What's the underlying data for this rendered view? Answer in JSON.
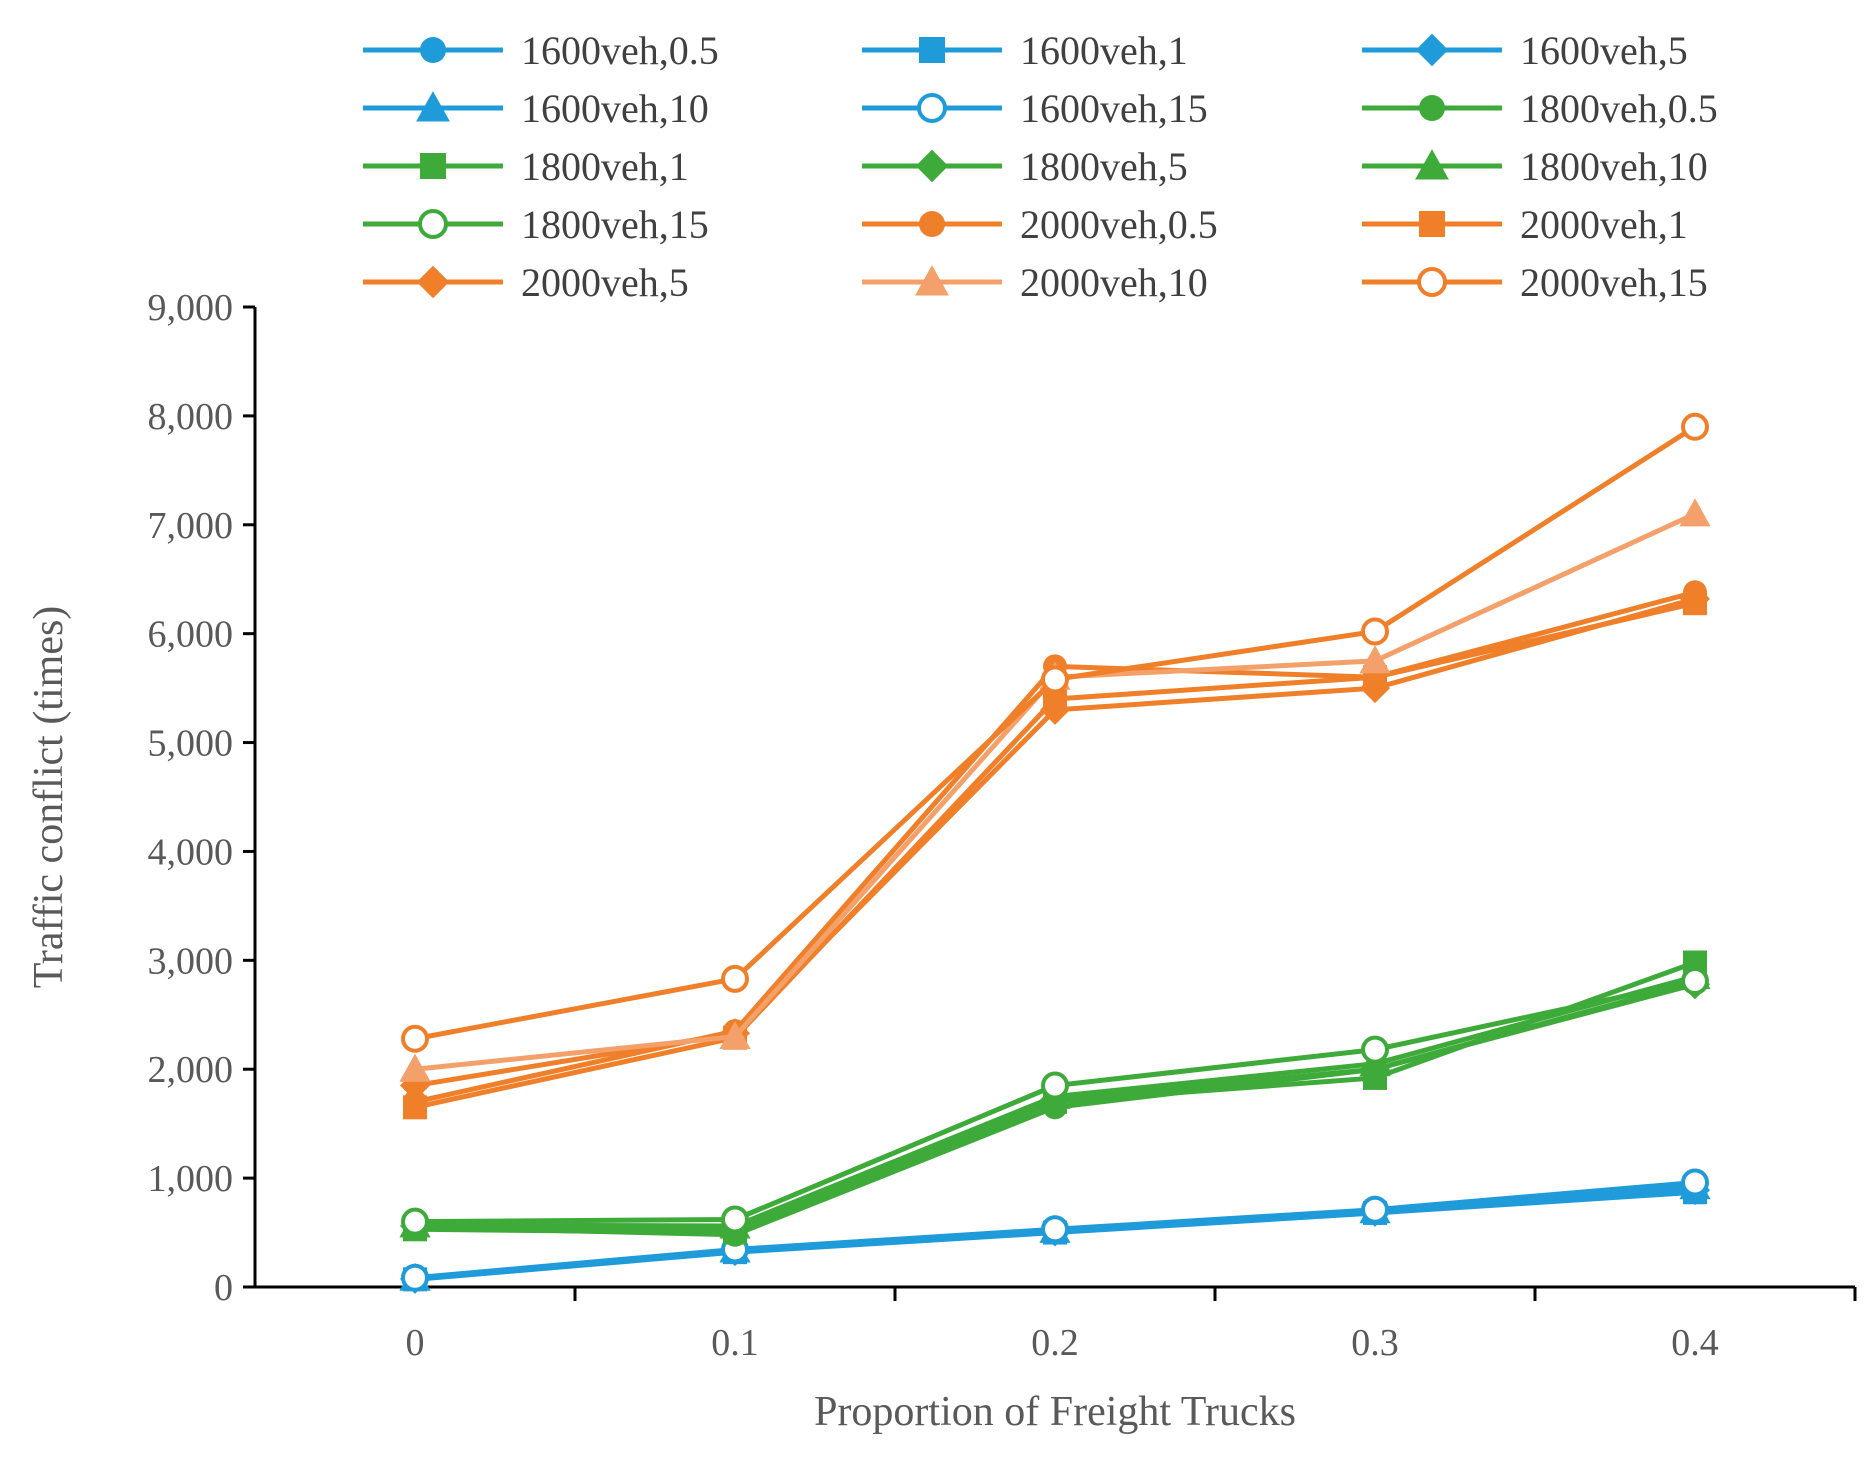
{
  "chart_data": {
    "type": "line",
    "title": "",
    "xlabel": "Proportion of Freight  Trucks",
    "ylabel": "Traffic conflict (times)",
    "x": [
      0,
      0.1,
      0.2,
      0.3,
      0.4
    ],
    "x_tick_labels": [
      "0",
      "0.1",
      "0.2",
      "0.3",
      "0.4"
    ],
    "xlim": [
      -0.05,
      0.45
    ],
    "ylim": [
      0,
      9000
    ],
    "y_ticks": [
      0,
      1000,
      2000,
      3000,
      4000,
      5000,
      6000,
      7000,
      8000,
      9000
    ],
    "y_tick_labels": [
      "0",
      "1,000",
      "2,000",
      "3,000",
      "4,000",
      "5,000",
      "6,000",
      "7,000",
      "8,000",
      "9,000"
    ],
    "grid": false,
    "legend_position": "top",
    "series": [
      {
        "name": "1600veh,0.5",
        "color": "#1F9BDA",
        "marker": "circle",
        "values": [
          80,
          330,
          520,
          690,
          900
        ]
      },
      {
        "name": "1600veh,1",
        "color": "#1F9BDA",
        "marker": "square",
        "values": [
          70,
          320,
          500,
          680,
          870
        ]
      },
      {
        "name": "1600veh,5",
        "color": "#1F9BDA",
        "marker": "diamond",
        "values": [
          75,
          330,
          510,
          690,
          890
        ]
      },
      {
        "name": "1600veh,10",
        "color": "#1F9BDA",
        "marker": "triangle",
        "values": [
          80,
          340,
          520,
          700,
          920
        ]
      },
      {
        "name": "1600veh,15",
        "color": "#1F9BDA",
        "marker": "circle-open",
        "values": [
          85,
          345,
          530,
          710,
          960
        ]
      },
      {
        "name": "1800veh,0.5",
        "color": "#3EAA3A",
        "marker": "circle",
        "values": [
          550,
          480,
          1650,
          2000,
          2800
        ]
      },
      {
        "name": "1800veh,1",
        "color": "#3EAA3A",
        "marker": "square",
        "values": [
          530,
          500,
          1700,
          1920,
          2980
        ]
      },
      {
        "name": "1800veh,5",
        "color": "#3EAA3A",
        "marker": "diamond",
        "values": [
          560,
          520,
          1720,
          2000,
          2780
        ]
      },
      {
        "name": "1800veh,10",
        "color": "#3EAA3A",
        "marker": "triangle",
        "values": [
          570,
          560,
          1750,
          2050,
          2850
        ]
      },
      {
        "name": "1800veh,15",
        "color": "#3EAA3A",
        "marker": "circle-open",
        "values": [
          600,
          620,
          1850,
          2180,
          2810
        ]
      },
      {
        "name": "2000veh,0.5",
        "color": "#F07F2A",
        "marker": "circle",
        "values": [
          1700,
          2350,
          5700,
          5600,
          6380
        ]
      },
      {
        "name": "2000veh,1",
        "color": "#F07F2A",
        "marker": "square",
        "values": [
          1650,
          2290,
          5400,
          5600,
          6280
        ]
      },
      {
        "name": "2000veh,5",
        "color": "#F07F2A",
        "marker": "diamond",
        "values": [
          1850,
          2330,
          5300,
          5500,
          6320
        ]
      },
      {
        "name": "2000veh,10",
        "color": "#F4A06A",
        "marker": "triangle",
        "values": [
          2000,
          2300,
          5600,
          5750,
          7100
        ]
      },
      {
        "name": "2000veh,15",
        "color": "#F07F2A",
        "marker": "circle-open",
        "values": [
          2280,
          2830,
          5580,
          6020,
          7900
        ]
      }
    ]
  }
}
